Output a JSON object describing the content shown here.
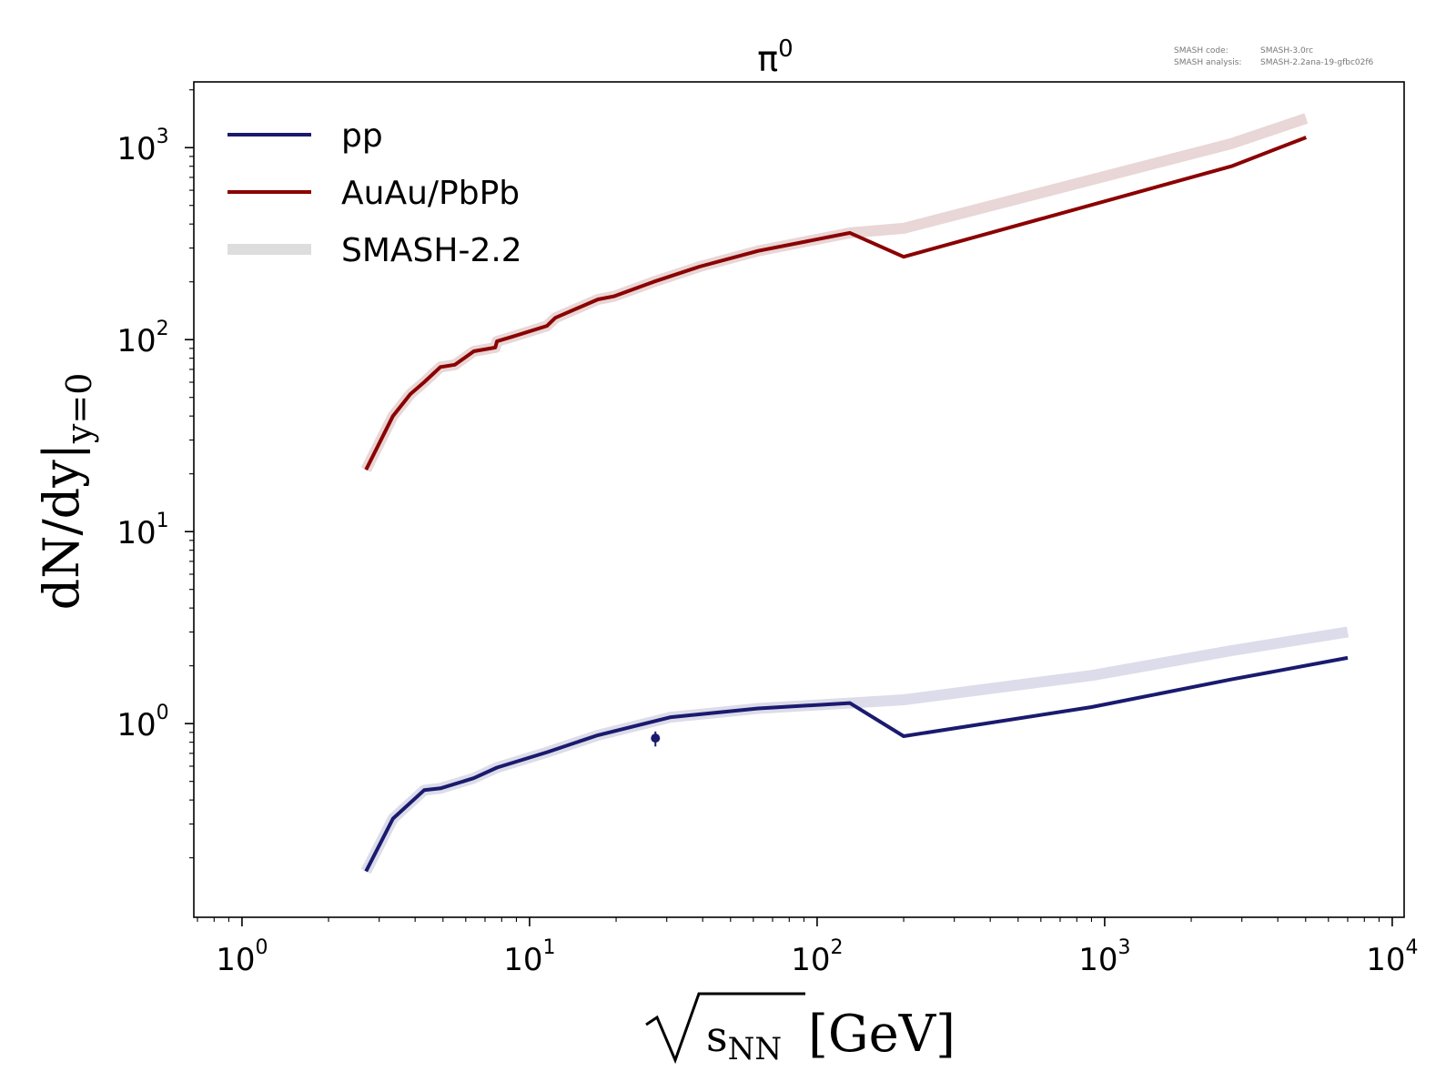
{
  "chart_data": {
    "type": "line",
    "title": "π⁰",
    "title_base": "π",
    "title_sup": "0",
    "xlabel": "√sNN [GeV]",
    "xlabel_sub": "NN",
    "xlabel_var": "s",
    "xlabel_unit": "[GeV]",
    "ylabel": "dN/dy|y=0",
    "ylabel_main": "dN/dy|",
    "ylabel_sub": "y=0",
    "xscale": "log",
    "yscale": "log",
    "xlim": [
      0.68,
      11000
    ],
    "ylim": [
      0.098,
      2200
    ],
    "grid": false,
    "legend_position": "top-left",
    "x_ticks": [
      {
        "base": "10",
        "exp": "0",
        "value": 1
      },
      {
        "base": "10",
        "exp": "1",
        "value": 10
      },
      {
        "base": "10",
        "exp": "2",
        "value": 100
      },
      {
        "base": "10",
        "exp": "3",
        "value": 1000
      },
      {
        "base": "10",
        "exp": "4",
        "value": 10000
      }
    ],
    "y_ticks": [
      {
        "base": "10",
        "exp": "0",
        "value": 1
      },
      {
        "base": "10",
        "exp": "1",
        "value": 10
      },
      {
        "base": "10",
        "exp": "2",
        "value": 100
      },
      {
        "base": "10",
        "exp": "3",
        "value": 1000
      }
    ],
    "legend": [
      {
        "label": "pp",
        "color": "#1a1a6e",
        "style": "thin"
      },
      {
        "label": "AuAu/PbPb",
        "color": "#8b0000",
        "style": "thin"
      },
      {
        "label": "SMASH-2.2",
        "color": "#dddddd",
        "style": "thick"
      }
    ],
    "series": [
      {
        "name": "pp",
        "role": "current",
        "color": "#1a1a6e",
        "x": [
          2.7,
          3.35,
          4.3,
          4.9,
          6.4,
          7.7,
          11.5,
          17.3,
          31,
          62.4,
          130,
          200,
          900,
          2760,
          7000
        ],
        "y": [
          0.17,
          0.32,
          0.45,
          0.46,
          0.52,
          0.59,
          0.71,
          0.87,
          1.08,
          1.2,
          1.28,
          0.86,
          1.22,
          1.7,
          2.2
        ]
      },
      {
        "name": "AuAu/PbPb",
        "role": "current",
        "color": "#8b0000",
        "x": [
          2.7,
          3.35,
          3.85,
          4.3,
          4.9,
          5.5,
          6.4,
          7.6,
          7.7,
          8.8,
          11.5,
          12.3,
          17.3,
          19.6,
          27,
          39,
          62.4,
          130,
          200,
          2760,
          5020
        ],
        "y": [
          21,
          40,
          52,
          60,
          72,
          74,
          87,
          91,
          98,
          104,
          118,
          130,
          162,
          168,
          200,
          240,
          290,
          360,
          270,
          800,
          1130
        ]
      },
      {
        "name": "SMASH-2.2 (AuAu/PbPb)",
        "role": "reference",
        "color": "#e9d6d6",
        "x": [
          2.7,
          3.35,
          3.85,
          4.3,
          4.9,
          5.5,
          6.4,
          7.6,
          7.7,
          8.8,
          11.5,
          12.3,
          17.3,
          19.6,
          27,
          39,
          62.4,
          130,
          200,
          2760,
          5020
        ],
        "y": [
          21,
          40,
          52,
          60,
          72,
          74,
          87,
          91,
          98,
          104,
          118,
          130,
          162,
          168,
          200,
          240,
          290,
          360,
          380,
          1050,
          1420
        ]
      },
      {
        "name": "SMASH-2.2 (pp)",
        "role": "reference",
        "color": "#dcdcea",
        "x": [
          2.7,
          3.35,
          4.3,
          4.9,
          6.4,
          7.7,
          11.5,
          17.3,
          31,
          62.4,
          130,
          200,
          900,
          2760,
          7000
        ],
        "y": [
          0.17,
          0.32,
          0.45,
          0.46,
          0.52,
          0.59,
          0.71,
          0.87,
          1.08,
          1.2,
          1.28,
          1.33,
          1.78,
          2.4,
          3.0
        ]
      }
    ],
    "data_points": [
      {
        "series": "pp",
        "x": 27.4,
        "y": 0.84,
        "y_err_low": 0.76,
        "y_err_high": 0.91,
        "color": "#1a1a6e"
      }
    ]
  },
  "info": {
    "code_label": "SMASH code:",
    "code_value": "SMASH-3.0rc",
    "analysis_label": "SMASH analysis:",
    "analysis_value": "SMASH-2.2ana-19-gfbc02f6"
  }
}
